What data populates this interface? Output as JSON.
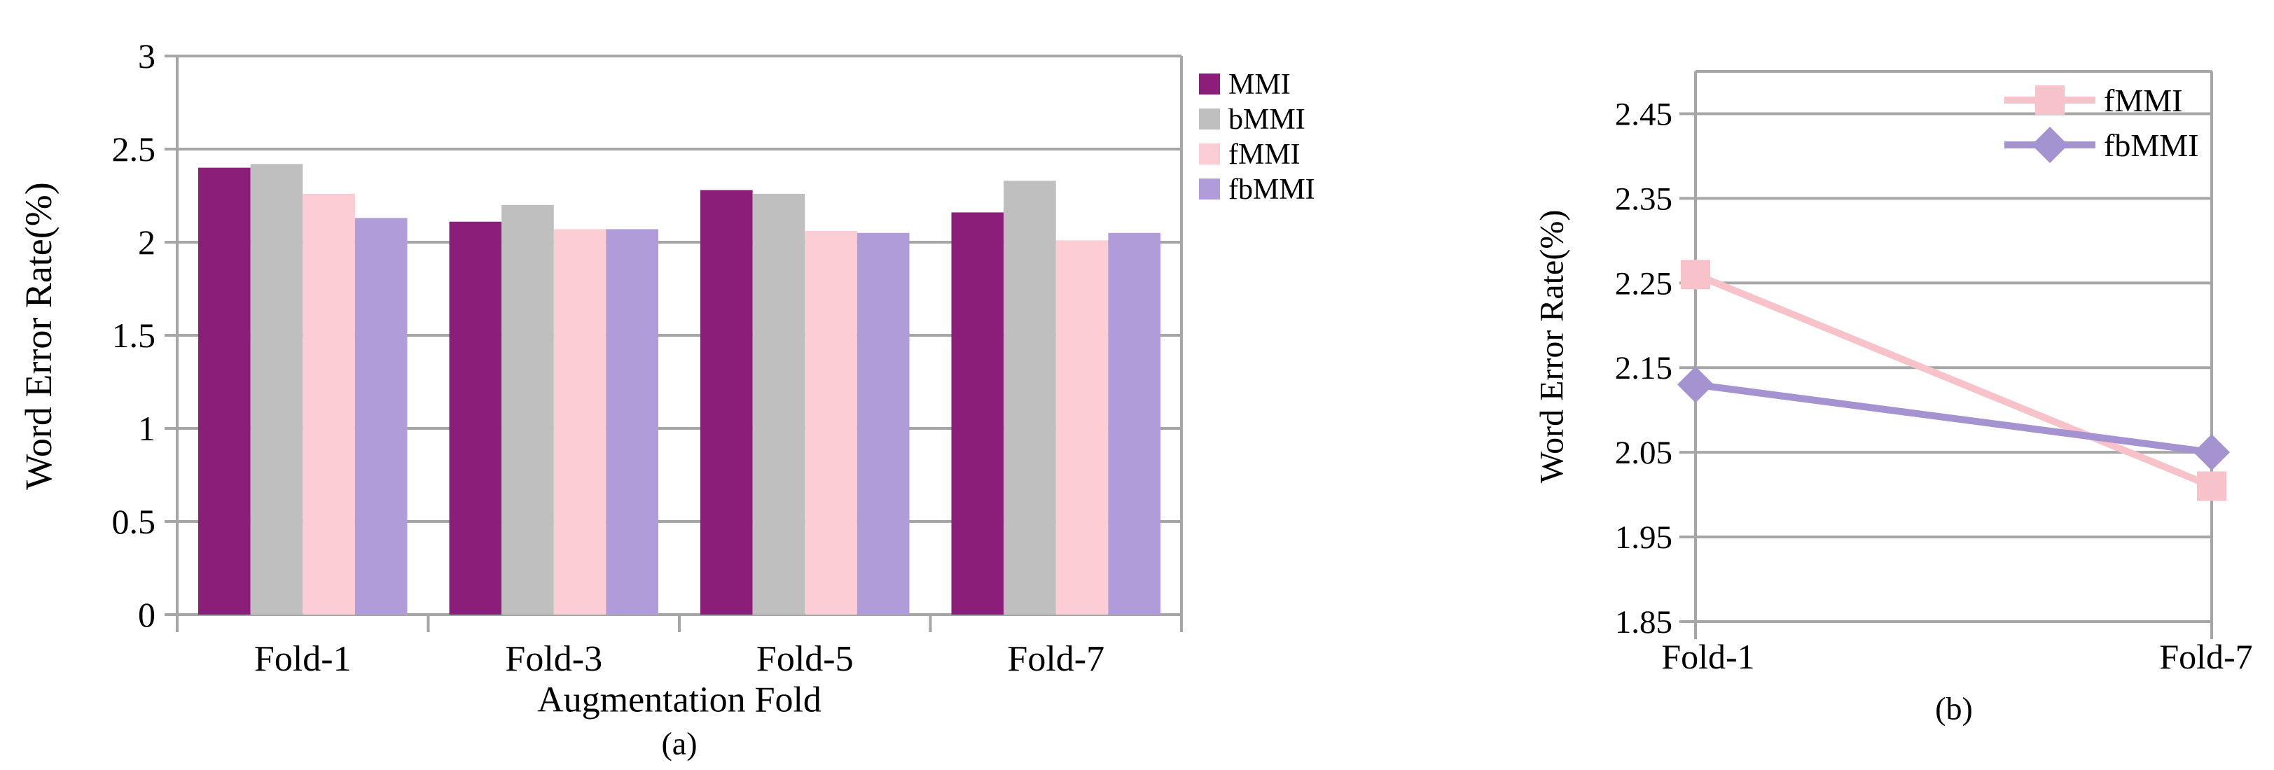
{
  "figure": {
    "background": "#FFFFFF",
    "grid_color": "#A6A6A6",
    "axis_color": "#A6A6A6",
    "text_color": "#000000"
  },
  "chart_data": [
    {
      "id": "a",
      "type": "bar",
      "caption": "(a)",
      "xlabel": "Augmentation Fold",
      "ylabel": "Word Error Rate(%)",
      "categories": [
        "Fold-1",
        "Fold-3",
        "Fold-5",
        "Fold-7"
      ],
      "series": [
        {
          "name": "MMI",
          "color": "#8B1E78",
          "values": [
            2.4,
            2.11,
            2.28,
            2.16
          ]
        },
        {
          "name": "bMMI",
          "color": "#BFBFBF",
          "values": [
            2.42,
            2.2,
            2.26,
            2.33
          ]
        },
        {
          "name": "fMMI",
          "color": "#FDCDD5",
          "values": [
            2.26,
            2.07,
            2.06,
            2.01
          ]
        },
        {
          "name": "fbMMI",
          "color": "#B09CD8",
          "values": [
            2.13,
            2.07,
            2.05,
            2.05
          ]
        }
      ],
      "ylim": [
        0,
        3
      ],
      "yticks": [
        3,
        2.5,
        2,
        1.5,
        1,
        0.5,
        0
      ],
      "ytick_labels": [
        "3",
        "2.5",
        "2",
        "1.5",
        "1",
        "0.5",
        "0"
      ],
      "grid": true,
      "legend_position": "right-outside"
    },
    {
      "id": "b",
      "type": "line",
      "caption": "(b)",
      "xlabel": "",
      "ylabel": "Word Error Rate(%)",
      "categories": [
        "Fold-1",
        "Fold-7"
      ],
      "series": [
        {
          "name": "fMMI",
          "color": "#F8C2CA",
          "marker": "square",
          "values": [
            2.26,
            2.01
          ]
        },
        {
          "name": "fbMMI",
          "color": "#A592D0",
          "marker": "diamond",
          "values": [
            2.13,
            2.05
          ]
        }
      ],
      "ylim": [
        1.85,
        2.5
      ],
      "yticks": [
        2.45,
        2.35,
        2.25,
        2.15,
        2.05,
        1.95,
        1.85
      ],
      "ytick_labels": [
        "2.45",
        "2.35",
        "2.25",
        "2.15",
        "2.05",
        "1.95",
        "1.85"
      ],
      "grid": true,
      "legend_position": "top-right-inside"
    }
  ]
}
